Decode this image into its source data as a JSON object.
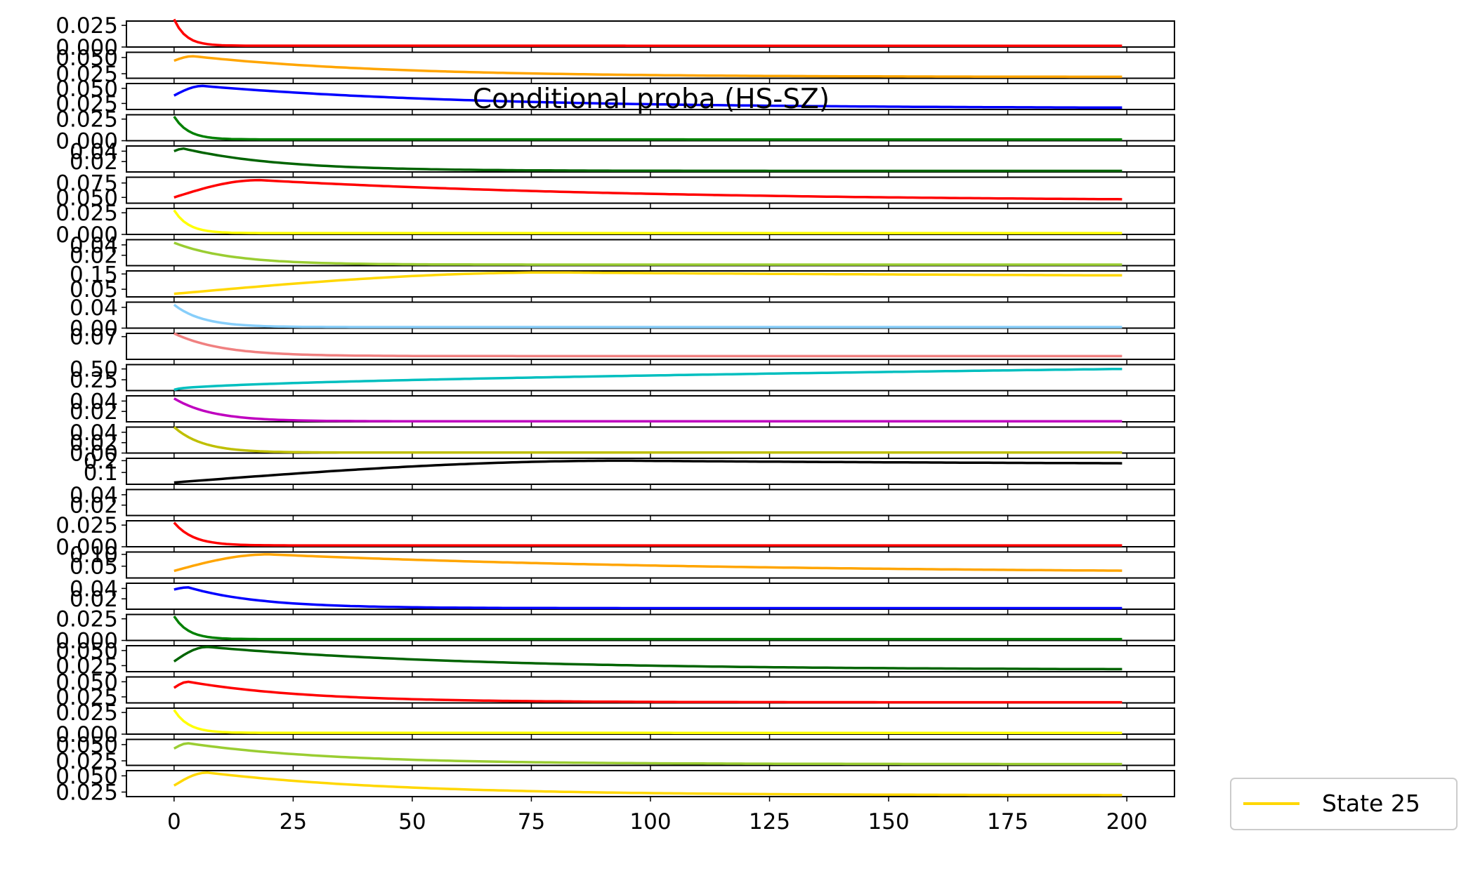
{
  "chart_data": {
    "type": "line",
    "title": "Conditional proba (HS-SZ)",
    "xlabel": "",
    "ylabel": "",
    "xlim": [
      -10,
      210
    ],
    "xticks": [
      0,
      25,
      50,
      75,
      100,
      125,
      150,
      175,
      200
    ],
    "xtick_labels": [
      "0",
      "25",
      "50",
      "75",
      "100",
      "125",
      "150",
      "175",
      "200"
    ],
    "grid": false,
    "legend": {
      "position": "outside-bottom-right",
      "entries": [
        {
          "label": "State 25",
          "color": "#ffd700"
        }
      ]
    },
    "panels": [
      {
        "color": "#ff0000",
        "ylim": [
          0.0,
          0.03
        ],
        "ytick_labels": [
          {
            "value": 0.025,
            "label": "0.025"
          },
          {
            "value": 0.0,
            "label": "0.000"
          }
        ],
        "shape": "decay",
        "start": 0.032,
        "end": 0.0015,
        "tau": 2.5
      },
      {
        "color": "#ffa500",
        "ylim": [
          0.018,
          0.058
        ],
        "ytick_labels": [
          {
            "value": 0.05,
            "label": "0.050"
          },
          {
            "value": 0.025,
            "label": "0.025"
          }
        ],
        "shape": "hump",
        "start": 0.045,
        "peak": 0.052,
        "tpeak": 4,
        "end": 0.02,
        "tau": 40
      },
      {
        "color": "#0000ff",
        "ylim": [
          0.015,
          0.058
        ],
        "ytick_labels": [
          {
            "value": 0.05,
            "label": "0.050"
          },
          {
            "value": 0.025,
            "label": "0.025"
          }
        ],
        "shape": "hump",
        "start": 0.038,
        "peak": 0.054,
        "tpeak": 6,
        "end": 0.017,
        "tau": 55
      },
      {
        "color": "#008000",
        "ylim": [
          0.0,
          0.03
        ],
        "ytick_labels": [
          {
            "value": 0.025,
            "label": "0.025"
          },
          {
            "value": 0.0,
            "label": "0.000"
          }
        ],
        "shape": "decay",
        "start": 0.028,
        "end": 0.0015,
        "tau": 3
      },
      {
        "color": "#006400",
        "ylim": [
          0.0,
          0.05
        ],
        "ytick_labels": [
          {
            "value": 0.04,
            "label": "0.04"
          },
          {
            "value": 0.02,
            "label": "0.02"
          }
        ],
        "shape": "hump",
        "start": 0.04,
        "peak": 0.045,
        "tpeak": 2,
        "end": 0.002,
        "tau": 20
      },
      {
        "color": "#ff0000",
        "ylim": [
          0.04,
          0.085
        ],
        "ytick_labels": [
          {
            "value": 0.075,
            "label": "0.075"
          },
          {
            "value": 0.05,
            "label": "0.050"
          }
        ],
        "shape": "hump",
        "start": 0.05,
        "peak": 0.08,
        "tpeak": 18,
        "end": 0.043,
        "tau": 80
      },
      {
        "color": "#ffff00",
        "ylim": [
          0.0,
          0.03
        ],
        "ytick_labels": [
          {
            "value": 0.025,
            "label": "0.025"
          },
          {
            "value": 0.0,
            "label": "0.000"
          }
        ],
        "shape": "decay",
        "start": 0.028,
        "end": 0.0015,
        "tau": 3
      },
      {
        "color": "#9acd32",
        "ylim": [
          0.0,
          0.05
        ],
        "ytick_labels": [
          {
            "value": 0.04,
            "label": "0.04"
          },
          {
            "value": 0.02,
            "label": "0.02"
          }
        ],
        "shape": "decay",
        "start": 0.044,
        "end": 0.002,
        "tau": 12
      },
      {
        "color": "#ffd700",
        "ylim": [
          0.0,
          0.17
        ],
        "ytick_labels": [
          {
            "value": 0.15,
            "label": "0.15"
          },
          {
            "value": 0.05,
            "label": "0.05"
          }
        ],
        "shape": "hump",
        "start": 0.02,
        "peak": 0.16,
        "tpeak": 80,
        "end": 0.125,
        "tau": 150
      },
      {
        "color": "#87cefa",
        "ylim": [
          0.0,
          0.05
        ],
        "ytick_labels": [
          {
            "value": 0.04,
            "label": "0.04"
          },
          {
            "value": 0.0,
            "label": "0.00"
          }
        ],
        "shape": "decay",
        "start": 0.045,
        "end": 0.002,
        "tau": 6
      },
      {
        "color": "#f08080",
        "ylim": [
          0.0,
          0.08
        ],
        "ytick_labels": [
          {
            "value": 0.07,
            "label": "0.07"
          }
        ],
        "shape": "decay",
        "start": 0.08,
        "end": 0.01,
        "tau": 10
      },
      {
        "color": "#00bfbf",
        "ylim": [
          0.0,
          0.6
        ],
        "ytick_labels": [
          {
            "value": 0.5,
            "label": "0.50"
          },
          {
            "value": 0.25,
            "label": "0.25"
          }
        ],
        "shape": "rise",
        "start": 0.02,
        "end": 0.5
      },
      {
        "color": "#bf00bf",
        "ylim": [
          0.0,
          0.05
        ],
        "ytick_labels": [
          {
            "value": 0.04,
            "label": "0.04"
          },
          {
            "value": 0.02,
            "label": "0.02"
          }
        ],
        "shape": "decay",
        "start": 0.045,
        "end": 0.001,
        "tau": 8
      },
      {
        "color": "#bfbf00",
        "ylim": [
          0.0,
          0.05
        ],
        "ytick_labels": [
          {
            "value": 0.04,
            "label": "0.04"
          },
          {
            "value": 0.02,
            "label": "0.02"
          },
          {
            "value": 0.0,
            "label": "0.00"
          }
        ],
        "shape": "decay",
        "start": 0.05,
        "end": 0.001,
        "tau": 6
      },
      {
        "color": "#000000",
        "ylim": [
          0.0,
          0.22
        ],
        "ytick_labels": [
          {
            "value": 0.2,
            "label": "0.2"
          },
          {
            "value": 0.1,
            "label": "0.1"
          }
        ],
        "shape": "hump",
        "start": 0.015,
        "peak": 0.2,
        "tpeak": 95,
        "end": 0.16,
        "tau": 130
      },
      {
        "color": "#ffffff",
        "ylim": [
          0.0,
          0.05
        ],
        "ytick_labels": [
          {
            "value": 0.04,
            "label": "0.04"
          },
          {
            "value": 0.02,
            "label": "0.02"
          }
        ],
        "shape": "none"
      },
      {
        "color": "#ff0000",
        "ylim": [
          0.0,
          0.03
        ],
        "ytick_labels": [
          {
            "value": 0.025,
            "label": "0.025"
          },
          {
            "value": 0.0,
            "label": "0.000"
          }
        ],
        "shape": "decay",
        "start": 0.028,
        "end": 0.0015,
        "tau": 4
      },
      {
        "color": "#ffa500",
        "ylim": [
          0.0,
          0.11
        ],
        "ytick_labels": [
          {
            "value": 0.1,
            "label": "0.10"
          },
          {
            "value": 0.05,
            "label": "0.05"
          }
        ],
        "shape": "hump",
        "start": 0.03,
        "peak": 0.1,
        "tpeak": 20,
        "end": 0.02,
        "tau": 90
      },
      {
        "color": "#0000ff",
        "ylim": [
          0.0,
          0.05
        ],
        "ytick_labels": [
          {
            "value": 0.04,
            "label": "0.04"
          },
          {
            "value": 0.02,
            "label": "0.02"
          }
        ],
        "shape": "hump",
        "start": 0.038,
        "peak": 0.042,
        "tpeak": 3,
        "end": 0.002,
        "tau": 15
      },
      {
        "color": "#008000",
        "ylim": [
          0.0,
          0.03
        ],
        "ytick_labels": [
          {
            "value": 0.025,
            "label": "0.025"
          },
          {
            "value": 0.0,
            "label": "0.000"
          }
        ],
        "shape": "decay",
        "start": 0.028,
        "end": 0.0015,
        "tau": 3
      },
      {
        "color": "#006400",
        "ylim": [
          0.015,
          0.058
        ],
        "ytick_labels": [
          {
            "value": 0.05,
            "label": "0.050"
          },
          {
            "value": 0.025,
            "label": "0.025"
          }
        ],
        "shape": "hump",
        "start": 0.032,
        "peak": 0.056,
        "tpeak": 7,
        "end": 0.018,
        "tau": 55
      },
      {
        "color": "#ff0000",
        "ylim": [
          0.015,
          0.058
        ],
        "ytick_labels": [
          {
            "value": 0.05,
            "label": "0.050"
          },
          {
            "value": 0.025,
            "label": "0.025"
          }
        ],
        "shape": "hump",
        "start": 0.04,
        "peak": 0.05,
        "tpeak": 3,
        "end": 0.016,
        "tau": 25
      },
      {
        "color": "#ffff00",
        "ylim": [
          0.0,
          0.03
        ],
        "ytick_labels": [
          {
            "value": 0.025,
            "label": "0.025"
          },
          {
            "value": 0.0,
            "label": "0.000"
          }
        ],
        "shape": "decay",
        "start": 0.028,
        "end": 0.0015,
        "tau": 3
      },
      {
        "color": "#9acd32",
        "ylim": [
          0.018,
          0.058
        ],
        "ytick_labels": [
          {
            "value": 0.05,
            "label": "0.050"
          },
          {
            "value": 0.025,
            "label": "0.025"
          }
        ],
        "shape": "hump",
        "start": 0.044,
        "peak": 0.052,
        "tpeak": 3,
        "end": 0.02,
        "tau": 30
      },
      {
        "color": "#ffd700",
        "ylim": [
          0.018,
          0.058
        ],
        "ytick_labels": [
          {
            "value": 0.05,
            "label": "0.050"
          },
          {
            "value": 0.025,
            "label": "0.025"
          }
        ],
        "shape": "hump",
        "start": 0.035,
        "peak": 0.055,
        "tpeak": 7,
        "end": 0.02,
        "tau": 40
      }
    ]
  }
}
